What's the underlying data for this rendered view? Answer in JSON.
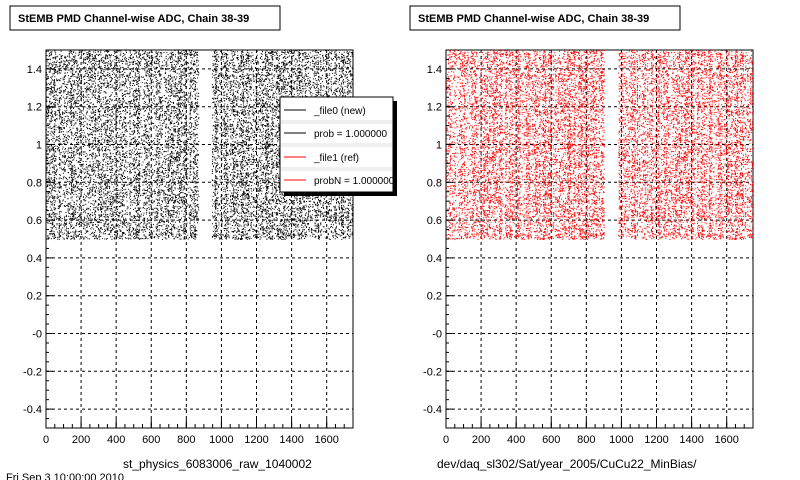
{
  "chart_data": [
    {
      "type": "scatter",
      "title": "StEMB PMD Channel-wise ADC, Chain 38-39",
      "xlabel": "st_physics_6083006_raw_1040002",
      "ylabel": "",
      "xlim": [
        0,
        1750
      ],
      "ylim": [
        -0.5,
        1.5
      ],
      "grid": true,
      "x_ticks": [
        0,
        200,
        400,
        600,
        800,
        1000,
        1200,
        1400,
        1600
      ],
      "y_ticks": [
        -0.4,
        -0.2,
        0,
        0.2,
        0.4,
        0.6,
        0.8,
        1,
        1.2,
        1.4
      ],
      "y_tick_labels": [
        "-0.4",
        "-0.2",
        "-0",
        "0.2",
        "0.4",
        "0.6",
        "0.8",
        "1",
        "1.2",
        "1.4"
      ],
      "series_color": "#000000",
      "band_y": [
        0.5,
        1.5
      ],
      "gap_x_ranges": [
        [
          870,
          945
        ]
      ],
      "legend": {
        "placement": "top-right",
        "entries": [
          {
            "label": "_file0 (new)",
            "color": "#000000"
          },
          {
            "label": "prob = 1.000000",
            "color": "#000000"
          },
          {
            "label": "_file1 (ref)",
            "color": "#ff0000"
          },
          {
            "label": "probN = 1.000000",
            "color": "#ff0000"
          }
        ]
      }
    },
    {
      "type": "scatter",
      "title": "StEMB PMD Channel-wise ADC, Chain 38-39",
      "xlabel": "dev/daq_sl302/Sat/year_2005/CuCu22_MinBias/",
      "ylabel": "",
      "xlim": [
        0,
        1750
      ],
      "ylim": [
        -0.5,
        1.5
      ],
      "grid": true,
      "x_ticks": [
        0,
        200,
        400,
        600,
        800,
        1000,
        1200,
        1400,
        1600
      ],
      "y_ticks": [
        -0.4,
        -0.2,
        0,
        0.2,
        0.4,
        0.6,
        0.8,
        1,
        1.2,
        1.4
      ],
      "y_tick_labels": [
        "-0.4",
        "-0.2",
        "-0",
        "0.2",
        "0.4",
        "0.6",
        "0.8",
        "1",
        "1.2",
        "1.4"
      ],
      "series_color": "#ff0000",
      "band_y": [
        0.5,
        1.5
      ],
      "gap_x_ranges": [
        [
          900,
          980
        ]
      ]
    }
  ],
  "footer": {
    "fragment": "Fri Sep 3 10:00:00 2010"
  }
}
